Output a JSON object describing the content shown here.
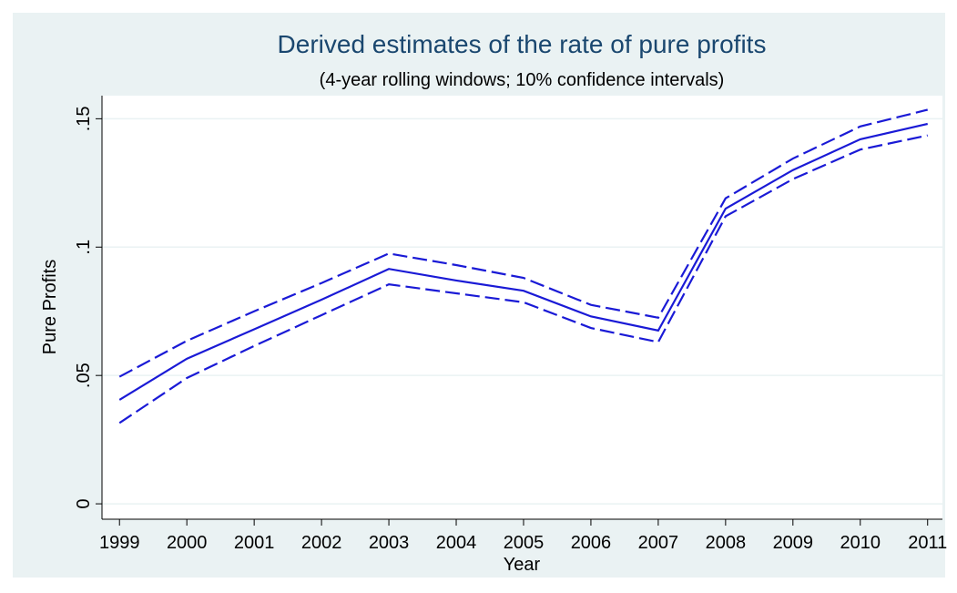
{
  "chart_data": {
    "type": "line",
    "title": "Derived estimates of the rate of pure profits",
    "subtitle": "(4-year rolling windows; 10% confidence intervals)",
    "x_label": "Year",
    "y_label": "Pure Profits",
    "x": [
      1999,
      2000,
      2001,
      2002,
      2003,
      2004,
      2005,
      2006,
      2007,
      2008,
      2009,
      2010,
      2011
    ],
    "series": [
      {
        "color": "#1a1ad6",
        "dashed": false,
        "values": [
          0.0405,
          0.0565,
          0.068,
          0.0795,
          0.0915,
          0.087,
          0.083,
          0.073,
          0.0675,
          0.115,
          0.13,
          0.142,
          0.148
        ]
      },
      {
        "color": "#1a1ad6",
        "dashed": true,
        "values": [
          0.0495,
          0.0635,
          0.075,
          0.086,
          0.0975,
          0.093,
          0.088,
          0.0775,
          0.0725,
          0.119,
          0.1345,
          0.147,
          0.1535
        ]
      },
      {
        "color": "#1a1ad6",
        "dashed": true,
        "values": [
          0.0315,
          0.049,
          0.0615,
          0.0735,
          0.0855,
          0.082,
          0.0785,
          0.0685,
          0.063,
          0.112,
          0.1265,
          0.138,
          0.1435
        ]
      }
    ],
    "xlim": [
      1998.74,
      2011.22
    ],
    "ylim": [
      -0.006,
      0.159
    ],
    "xticks": [
      1999,
      2000,
      2001,
      2002,
      2003,
      2004,
      2005,
      2006,
      2007,
      2008,
      2009,
      2010,
      2011
    ],
    "yticks": [
      0,
      {
        "value": 0.05,
        "label": ".05"
      },
      {
        "value": 0.1,
        "label": ".1"
      },
      {
        "value": 0.15,
        "label": ".15"
      }
    ],
    "grid": true
  }
}
